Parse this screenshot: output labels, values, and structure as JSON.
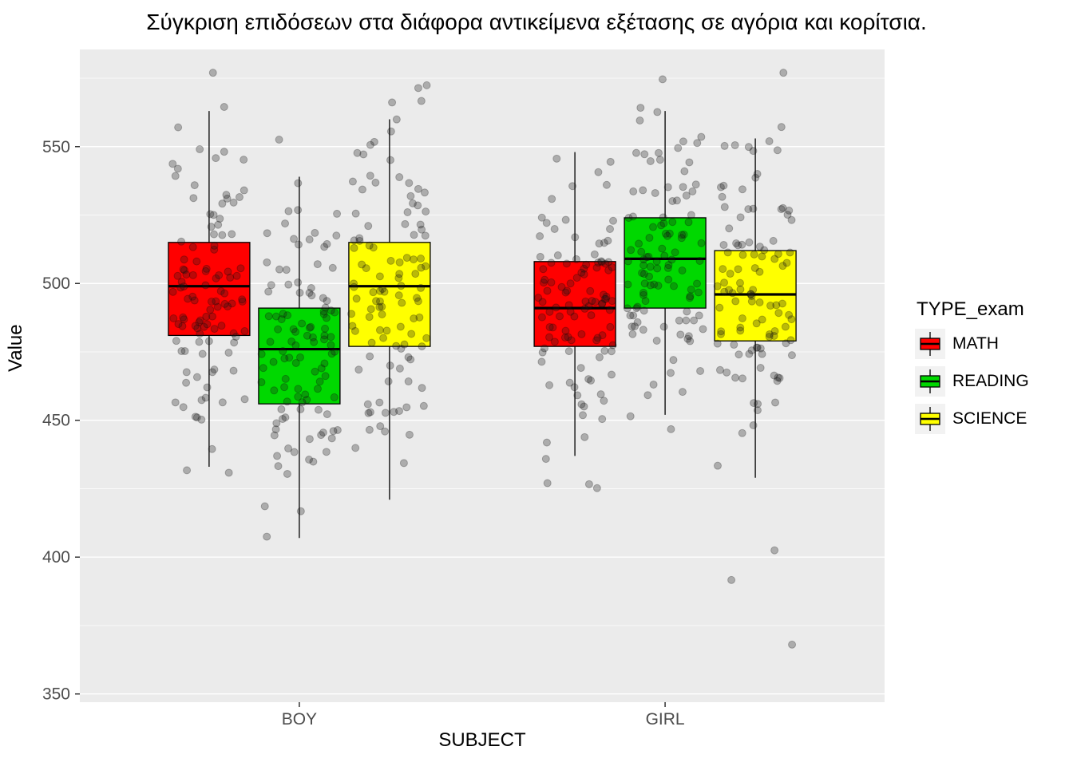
{
  "title": "Σύγκριση επιδόσεων στα διάφορα αντικείμενα εξέτασης σε αγόρια και κορίτσια.",
  "chart_data": {
    "type": "boxplot",
    "title": "Σύγκριση επιδόσεων στα διάφορα αντικείμενα εξέτασης σε αγόρια και κορίτσια.",
    "xlabel": "SUBJECT",
    "ylabel": "Value",
    "categories": [
      "BOY",
      "GIRL"
    ],
    "yticks": [
      350,
      400,
      450,
      500,
      550
    ],
    "yticks_minor": [
      375,
      425,
      475,
      525,
      575
    ],
    "ylim": [
      347,
      585.5
    ],
    "grid": true,
    "legend_title": "TYPE_exam",
    "legend_position": "right",
    "series": [
      {
        "name": "MATH",
        "color": "#FF0000",
        "boxes": [
          {
            "category": "BOY",
            "low": 433,
            "q1": 481,
            "median": 499,
            "q3": 515,
            "high": 563
          },
          {
            "category": "GIRL",
            "low": 437,
            "q1": 477,
            "median": 491,
            "q3": 508,
            "high": 548
          }
        ]
      },
      {
        "name": "READING",
        "color": "#00D800",
        "boxes": [
          {
            "category": "BOY",
            "low": 407,
            "q1": 456,
            "median": 476,
            "q3": 491,
            "high": 539
          },
          {
            "category": "GIRL",
            "low": 452,
            "q1": 491,
            "median": 509,
            "q3": 524,
            "high": 563
          }
        ]
      },
      {
        "name": "SCIENCE",
        "color": "#FFFF00",
        "boxes": [
          {
            "category": "BOY",
            "low": 421,
            "q1": 477,
            "median": 499,
            "q3": 515,
            "high": 560
          },
          {
            "category": "GIRL",
            "low": 429,
            "q1": 479,
            "median": 496,
            "q3": 512,
            "high": 553
          }
        ]
      }
    ],
    "jitter": {
      "points_per_group": 110,
      "color": "#1a1a1a",
      "opacity": 0.3,
      "radius": 4.5,
      "value_range": [
        357,
        577
      ]
    }
  },
  "panel": {
    "bg": "#EBEBEB",
    "grid_color": "#FFFFFF",
    "tick_color": "#333333",
    "tick_label_color": "#4D4D4D",
    "legend_key_bg": "#F2F2F2"
  }
}
